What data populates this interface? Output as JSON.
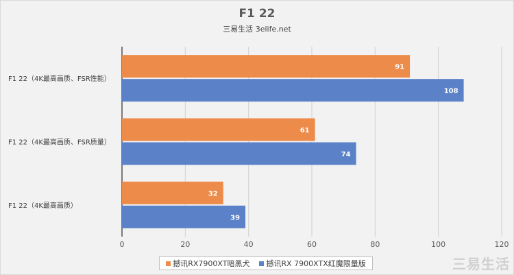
{
  "colors": {
    "series_a": "#ed8b4a",
    "series_b": "#5b82c8",
    "axis": "#000000",
    "grid": "#d0d0d0",
    "background": "#f2f2f2"
  },
  "watermark": "三易生活",
  "chart_data": {
    "type": "bar",
    "orientation": "horizontal",
    "title": "F1 22",
    "subtitle": "三易生活 3elife.net",
    "categories": [
      "F1 22（4K最高画质、FSR性能）",
      "F1 22（4K最高画质、FSR质量）",
      "F1 22（4K最高画质）"
    ],
    "series": [
      {
        "name": "撼讯RX7900XT暗黑犬",
        "values": [
          91,
          61,
          32
        ]
      },
      {
        "name": "撼讯RX 7900XTX红魔限量版",
        "values": [
          108,
          74,
          39
        ]
      }
    ],
    "xlim": [
      0,
      120
    ],
    "xticks": [
      0,
      20,
      40,
      60,
      80,
      100,
      120
    ],
    "grid": "vertical",
    "data_labels": true,
    "legend_position": "bottom"
  }
}
